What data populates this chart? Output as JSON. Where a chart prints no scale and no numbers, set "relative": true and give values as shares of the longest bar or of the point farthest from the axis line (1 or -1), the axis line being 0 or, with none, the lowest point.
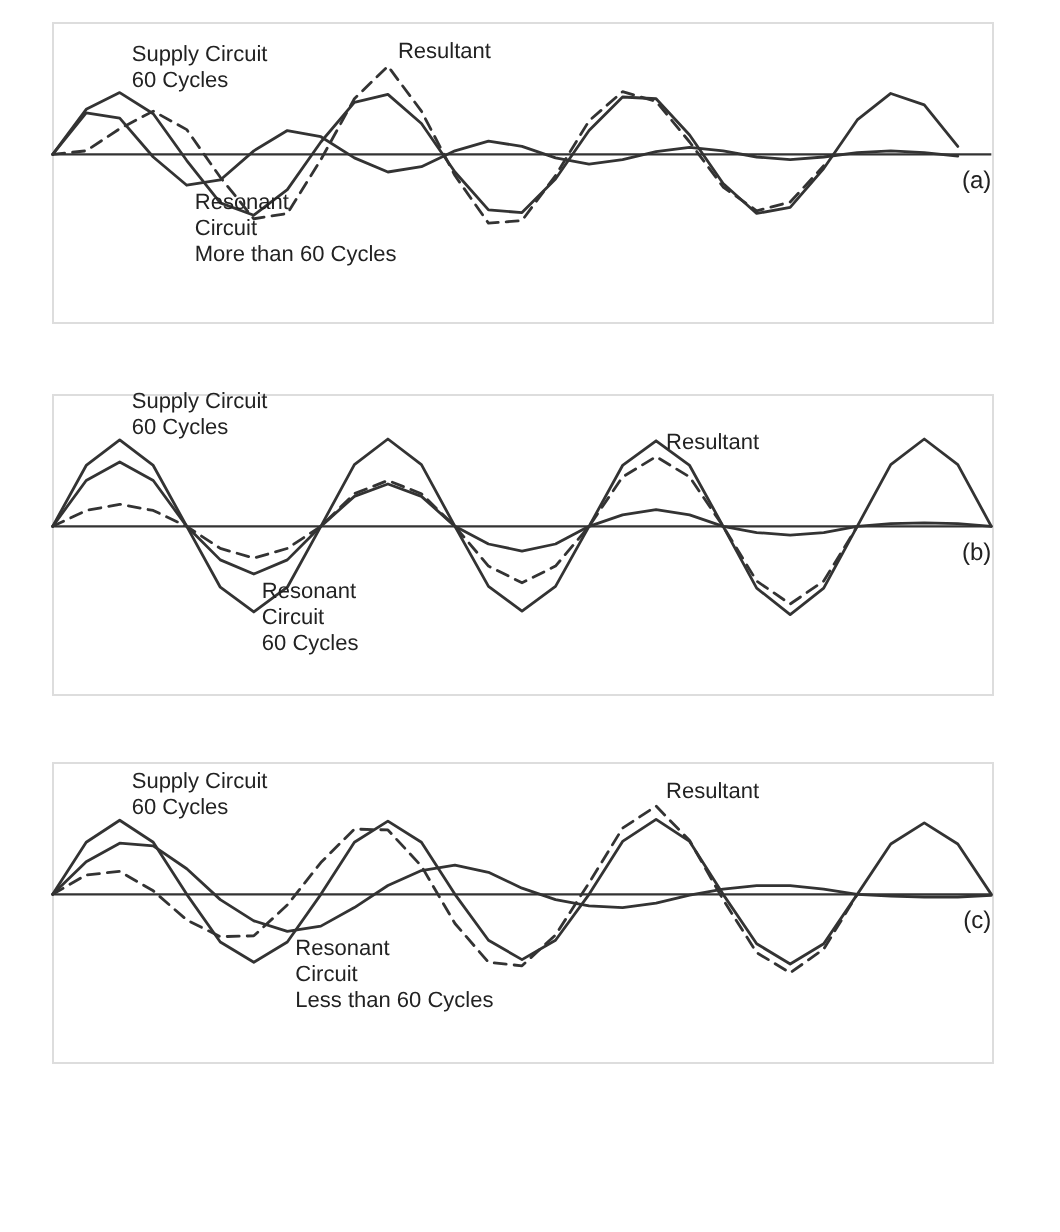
{
  "chart_data": [
    {
      "type": "line",
      "relative": true,
      "legend": false,
      "grid": false,
      "annotations": [
        "(a)"
      ],
      "categories": [
        null,
        null,
        null,
        null,
        null,
        null,
        null,
        null,
        null,
        null,
        null,
        null,
        null,
        null,
        null,
        null,
        null,
        null,
        null,
        null,
        null,
        null,
        null,
        null,
        null,
        null,
        null,
        null,
        null
      ],
      "series": [
        {
          "name": "Supply Circuit\n60 Cycles",
          "color": "#333333",
          "line_style": "solid",
          "values": [
            0,
            0.51,
            0.7,
            0.46,
            -0.07,
            -0.55,
            -0.69,
            -0.4,
            0.14,
            0.59,
            0.68,
            0.35,
            -0.2,
            -0.63,
            -0.66,
            -0.28,
            0.27,
            0.65,
            0.63,
            0.22,
            -0.33,
            -0.67,
            -0.6,
            -0.16,
            0.39,
            0.69,
            0.56,
            0.09,
            null
          ]
        },
        {
          "name": "Resonant\nCircuit\nMore than 60 Cycles",
          "color": "#333333",
          "line_style": "solid",
          "values": [
            0,
            0.47,
            0.41,
            -0.03,
            -0.35,
            -0.29,
            0.04,
            0.27,
            0.2,
            -0.04,
            -0.2,
            -0.14,
            0.04,
            0.15,
            0.09,
            -0.04,
            -0.11,
            -0.06,
            0.03,
            0.08,
            0.04,
            -0.03,
            -0.06,
            -0.03,
            0.02,
            0.04,
            0.02,
            -0.02,
            null
          ]
        },
        {
          "name": "Resultant",
          "color": "#333333",
          "line_style": "dashed",
          "values": [
            0,
            0.04,
            0.29,
            0.49,
            0.28,
            -0.26,
            -0.73,
            -0.67,
            -0.06,
            0.63,
            1.0,
            0.49,
            -0.24,
            -0.78,
            -0.75,
            -0.24,
            0.38,
            0.71,
            0.6,
            0.14,
            -0.37,
            -0.64,
            -0.54,
            -0.13,
            null,
            null,
            null,
            null,
            null
          ]
        }
      ]
    },
    {
      "type": "line",
      "relative": true,
      "legend": false,
      "grid": false,
      "annotations": [
        "(b)"
      ],
      "categories": [
        null,
        null,
        null,
        null,
        null,
        null,
        null,
        null,
        null,
        null,
        null,
        null,
        null,
        null,
        null,
        null,
        null,
        null,
        null,
        null,
        null,
        null,
        null,
        null,
        null,
        null,
        null,
        null,
        null
      ],
      "series": [
        {
          "name": "Supply Circuit\n60 Cycles",
          "color": "#333333",
          "line_style": "solid",
          "values": [
            0,
            0.69,
            0.98,
            0.69,
            0,
            -0.69,
            -0.97,
            -0.69,
            0,
            0.7,
            0.99,
            0.7,
            0,
            -0.68,
            -0.96,
            -0.68,
            0,
            0.69,
            0.97,
            0.69,
            0,
            -0.7,
            -1.0,
            -0.7,
            0,
            0.7,
            0.99,
            0.7,
            0
          ]
        },
        {
          "name": "Resonant\nCircuit\n60 Cycles",
          "color": "#333333",
          "line_style": "solid",
          "values": [
            0,
            0.52,
            0.73,
            0.52,
            0,
            -0.38,
            -0.54,
            -0.38,
            0,
            0.34,
            0.48,
            0.34,
            0,
            -0.2,
            -0.28,
            -0.2,
            0,
            0.13,
            0.19,
            0.13,
            0,
            -0.07,
            -0.1,
            -0.07,
            0,
            0.03,
            0.04,
            0.03,
            0
          ]
        },
        {
          "name": "Resultant",
          "color": "#333333",
          "line_style": "dashed",
          "values": [
            0,
            0.18,
            0.25,
            0.18,
            0,
            -0.25,
            -0.36,
            -0.25,
            0,
            0.37,
            0.52,
            0.37,
            0,
            -0.45,
            -0.64,
            -0.45,
            0,
            0.56,
            0.79,
            0.56,
            0,
            -0.62,
            -0.88,
            -0.62,
            0,
            null,
            null,
            null,
            null
          ]
        }
      ]
    },
    {
      "type": "line",
      "relative": true,
      "legend": false,
      "grid": false,
      "annotations": [
        "(c)"
      ],
      "categories": [
        null,
        null,
        null,
        null,
        null,
        null,
        null,
        null,
        null,
        null,
        null,
        null,
        null,
        null,
        null,
        null,
        null,
        null,
        null,
        null,
        null,
        null,
        null,
        null,
        null,
        null,
        null,
        null,
        null
      ],
      "series": [
        {
          "name": "Supply Circuit\n60 Cycles",
          "color": "#333333",
          "line_style": "solid",
          "values": [
            0,
            0.59,
            0.84,
            0.59,
            0,
            -0.54,
            -0.77,
            -0.54,
            0,
            0.59,
            0.83,
            0.59,
            0,
            -0.52,
            -0.74,
            -0.52,
            0,
            0.6,
            0.85,
            0.6,
            0,
            -0.56,
            -0.79,
            -0.56,
            0,
            0.57,
            0.81,
            0.57,
            0
          ]
        },
        {
          "name": "Resonant\nCircuit\nLess than 60 Cycles",
          "color": "#333333",
          "line_style": "solid",
          "values": [
            0,
            0.37,
            0.58,
            0.55,
            0.29,
            -0.06,
            -0.3,
            -0.42,
            -0.36,
            -0.15,
            0.1,
            0.27,
            0.33,
            0.25,
            0.07,
            -0.06,
            -0.13,
            -0.15,
            -0.1,
            -0.01,
            0.06,
            0.1,
            0.1,
            0.06,
            0,
            -0.02,
            -0.03,
            -0.03,
            -0.01
          ]
        },
        {
          "name": "Resultant",
          "color": "#333333",
          "line_style": "dashed",
          "values": [
            0,
            0.22,
            0.26,
            0.04,
            -0.29,
            -0.48,
            -0.47,
            -0.12,
            0.36,
            0.74,
            0.73,
            0.32,
            -0.33,
            -0.77,
            -0.81,
            -0.46,
            0.13,
            0.75,
            1.0,
            0.61,
            -0.06,
            -0.66,
            -0.89,
            -0.62,
            0,
            null,
            null,
            null,
            null
          ]
        }
      ]
    }
  ]
}
